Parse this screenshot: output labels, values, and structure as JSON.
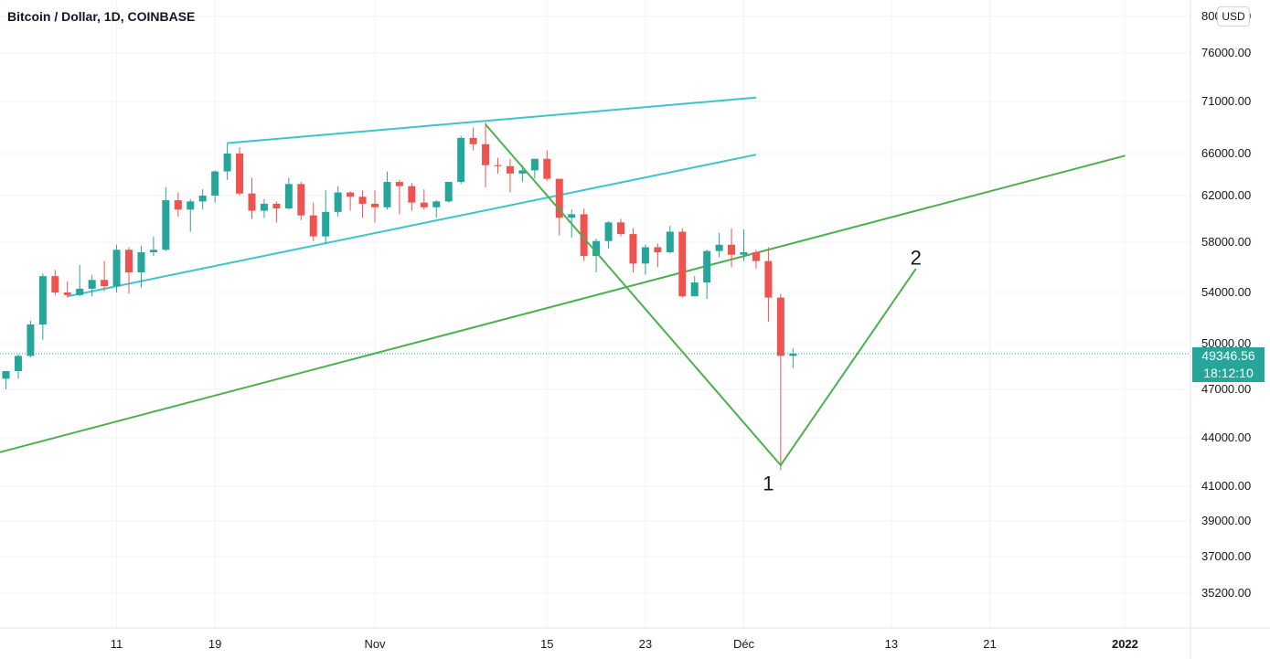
{
  "header": {
    "title": "Bitcoin / Dollar, 1D, COINBASE",
    "currency": "USD"
  },
  "last_price": {
    "price": "49346.56",
    "countdown": "18:12:10"
  },
  "chart_data": {
    "type": "candlestick",
    "title": "Bitcoin / Dollar, 1D, COINBASE",
    "currency": "USD",
    "y_ticks": [
      "80000.00",
      "76000.00",
      "71000.00",
      "66000.00",
      "62000.00",
      "58000.00",
      "54000.00",
      "50000.00",
      "47000.00",
      "44000.00",
      "41000.00",
      "39000.00",
      "37000.00",
      "35200.00"
    ],
    "x_ticks": [
      "11",
      "19",
      "Nov",
      "15",
      "23",
      "Déc",
      "13",
      "21",
      "2022"
    ],
    "last_price": 49346.56,
    "grid": true,
    "colors": {
      "up": "#26a69a",
      "down": "#ef5350",
      "channel": "#3cc4cc",
      "wave": "#4caf50",
      "price_line": "#26a69a"
    },
    "candles": [
      {
        "date": "Oct 2",
        "o": 47700,
        "h": 48000,
        "l": 47000,
        "c": 48200
      },
      {
        "date": "Oct 3",
        "o": 48200,
        "h": 49300,
        "l": 47700,
        "c": 49200
      },
      {
        "date": "Oct 4",
        "o": 49200,
        "h": 51800,
        "l": 49100,
        "c": 51500
      },
      {
        "date": "Oct 5",
        "o": 51500,
        "h": 55500,
        "l": 50300,
        "c": 55300
      },
      {
        "date": "Oct 6",
        "o": 55300,
        "h": 55800,
        "l": 53800,
        "c": 54000
      },
      {
        "date": "Oct 7",
        "o": 54000,
        "h": 54900,
        "l": 53600,
        "c": 53800
      },
      {
        "date": "Oct 8",
        "o": 53800,
        "h": 56200,
        "l": 53700,
        "c": 54300
      },
      {
        "date": "Oct 9",
        "o": 54300,
        "h": 55400,
        "l": 53700,
        "c": 55000
      },
      {
        "date": "Oct 10",
        "o": 55000,
        "h": 56500,
        "l": 54100,
        "c": 54500
      },
      {
        "date": "Oct 11",
        "o": 54500,
        "h": 57800,
        "l": 54000,
        "c": 57400
      },
      {
        "date": "Oct 12",
        "o": 57400,
        "h": 57600,
        "l": 53900,
        "c": 55600
      },
      {
        "date": "Oct 13",
        "o": 55600,
        "h": 57700,
        "l": 54400,
        "c": 57200
      },
      {
        "date": "Oct 14",
        "o": 57200,
        "h": 58500,
        "l": 56900,
        "c": 57400
      },
      {
        "date": "Oct 15",
        "o": 57400,
        "h": 62800,
        "l": 57300,
        "c": 61600
      },
      {
        "date": "Oct 16",
        "o": 61600,
        "h": 62300,
        "l": 60200,
        "c": 60800
      },
      {
        "date": "Oct 17",
        "o": 60800,
        "h": 61700,
        "l": 58900,
        "c": 61500
      },
      {
        "date": "Oct 18",
        "o": 61500,
        "h": 62600,
        "l": 60800,
        "c": 62000
      },
      {
        "date": "Oct 19",
        "o": 62000,
        "h": 64400,
        "l": 61400,
        "c": 64300
      },
      {
        "date": "Oct 20",
        "o": 64300,
        "h": 67000,
        "l": 63500,
        "c": 66000
      },
      {
        "date": "Oct 21",
        "o": 66000,
        "h": 66600,
        "l": 62000,
        "c": 62200
      },
      {
        "date": "Oct 22",
        "o": 62200,
        "h": 63700,
        "l": 60000,
        "c": 60700
      },
      {
        "date": "Oct 23",
        "o": 60700,
        "h": 61700,
        "l": 60100,
        "c": 61300
      },
      {
        "date": "Oct 24",
        "o": 61300,
        "h": 61500,
        "l": 59700,
        "c": 60900
      },
      {
        "date": "Oct 25",
        "o": 60900,
        "h": 63700,
        "l": 60800,
        "c": 63100
      },
      {
        "date": "Oct 26",
        "o": 63100,
        "h": 63300,
        "l": 59900,
        "c": 60300
      },
      {
        "date": "Oct 27",
        "o": 60300,
        "h": 61400,
        "l": 58100,
        "c": 58500
      },
      {
        "date": "Oct 28",
        "o": 58500,
        "h": 62500,
        "l": 57900,
        "c": 60600
      },
      {
        "date": "Oct 29",
        "o": 60600,
        "h": 62900,
        "l": 60200,
        "c": 62300
      },
      {
        "date": "Oct 30",
        "o": 62300,
        "h": 62400,
        "l": 60700,
        "c": 61900
      },
      {
        "date": "Oct 31",
        "o": 61900,
        "h": 62500,
        "l": 60100,
        "c": 61300
      },
      {
        "date": "Nov 1",
        "o": 61300,
        "h": 62500,
        "l": 59700,
        "c": 61000
      },
      {
        "date": "Nov 2",
        "o": 61000,
        "h": 64300,
        "l": 60800,
        "c": 63300
      },
      {
        "date": "Nov 3",
        "o": 63300,
        "h": 63500,
        "l": 60400,
        "c": 62900
      },
      {
        "date": "Nov 4",
        "o": 62900,
        "h": 63200,
        "l": 60700,
        "c": 61400
      },
      {
        "date": "Nov 5",
        "o": 61400,
        "h": 62600,
        "l": 60800,
        "c": 61000
      },
      {
        "date": "Nov 6",
        "o": 61000,
        "h": 61600,
        "l": 60100,
        "c": 61500
      },
      {
        "date": "Nov 7",
        "o": 61500,
        "h": 63300,
        "l": 61400,
        "c": 63300
      },
      {
        "date": "Nov 8",
        "o": 63300,
        "h": 67700,
        "l": 63100,
        "c": 67500
      },
      {
        "date": "Nov 9",
        "o": 67500,
        "h": 68500,
        "l": 66300,
        "c": 66900
      },
      {
        "date": "Nov 10",
        "o": 66900,
        "h": 69000,
        "l": 62800,
        "c": 64900
      },
      {
        "date": "Nov 11",
        "o": 64900,
        "h": 65600,
        "l": 64100,
        "c": 64800
      },
      {
        "date": "Nov 12",
        "o": 64800,
        "h": 65500,
        "l": 62300,
        "c": 64100
      },
      {
        "date": "Nov 13",
        "o": 64100,
        "h": 64900,
        "l": 63300,
        "c": 64400
      },
      {
        "date": "Nov 14",
        "o": 64400,
        "h": 65500,
        "l": 63600,
        "c": 65500
      },
      {
        "date": "Nov 15",
        "o": 65500,
        "h": 66300,
        "l": 63400,
        "c": 63600
      },
      {
        "date": "Nov 16",
        "o": 63600,
        "h": 63600,
        "l": 58600,
        "c": 60100
      },
      {
        "date": "Nov 17",
        "o": 60100,
        "h": 60800,
        "l": 58400,
        "c": 60400
      },
      {
        "date": "Nov 18",
        "o": 60400,
        "h": 60900,
        "l": 56500,
        "c": 56900
      },
      {
        "date": "Nov 19",
        "o": 56900,
        "h": 58300,
        "l": 55600,
        "c": 58100
      },
      {
        "date": "Nov 20",
        "o": 58100,
        "h": 59800,
        "l": 57500,
        "c": 59700
      },
      {
        "date": "Nov 21",
        "o": 59700,
        "h": 60000,
        "l": 58500,
        "c": 58700
      },
      {
        "date": "Nov 22",
        "o": 58700,
        "h": 59200,
        "l": 55600,
        "c": 56300
      },
      {
        "date": "Nov 23",
        "o": 56300,
        "h": 57800,
        "l": 55400,
        "c": 57600
      },
      {
        "date": "Nov 24",
        "o": 57600,
        "h": 57900,
        "l": 56000,
        "c": 57200
      },
      {
        "date": "Nov 25",
        "o": 57200,
        "h": 59400,
        "l": 57100,
        "c": 58900
      },
      {
        "date": "Nov 26",
        "o": 58900,
        "h": 59200,
        "l": 53600,
        "c": 53700
      },
      {
        "date": "Nov 27",
        "o": 53700,
        "h": 55300,
        "l": 53700,
        "c": 54800
      },
      {
        "date": "Nov 28",
        "o": 54800,
        "h": 57400,
        "l": 53500,
        "c": 57300
      },
      {
        "date": "Nov 29",
        "o": 57300,
        "h": 58800,
        "l": 56800,
        "c": 57800
      },
      {
        "date": "Nov 30",
        "o": 57800,
        "h": 59200,
        "l": 56000,
        "c": 57000
      },
      {
        "date": "Dec 1",
        "o": 57000,
        "h": 59100,
        "l": 56500,
        "c": 57200
      },
      {
        "date": "Dec 2",
        "o": 57200,
        "h": 57400,
        "l": 55900,
        "c": 56500
      },
      {
        "date": "Dec 3",
        "o": 56500,
        "h": 57600,
        "l": 51700,
        "c": 53600
      },
      {
        "date": "Dec 4",
        "o": 53600,
        "h": 53900,
        "l": 42000,
        "c": 49200
      },
      {
        "date": "Dec 5",
        "o": 49200,
        "h": 49700,
        "l": 48400,
        "c": 49346.56
      }
    ],
    "drawings": {
      "channel_upper": [
        {
          "date": "Oct 20",
          "price": 67000
        },
        {
          "date": "Dec 2",
          "price": 71400
        }
      ],
      "channel_lower": [
        {
          "date": "Oct 7",
          "price": 53700
        },
        {
          "date": "Dec 2",
          "price": 65900
        }
      ],
      "trendline": [
        {
          "date": "Sep 26",
          "price": 42000
        },
        {
          "date": "Jan 1",
          "price": 65800
        }
      ],
      "wave": [
        {
          "date": "Nov 10",
          "price": 68800
        },
        {
          "date": "Dec 4",
          "price": 42300
        },
        {
          "date": "Dec 15",
          "price": 55900
        }
      ],
      "labels": [
        {
          "text": "1",
          "date": "Dec 3",
          "price": 41200
        },
        {
          "text": "2",
          "date": "Dec 15",
          "price": 56800
        }
      ]
    }
  }
}
